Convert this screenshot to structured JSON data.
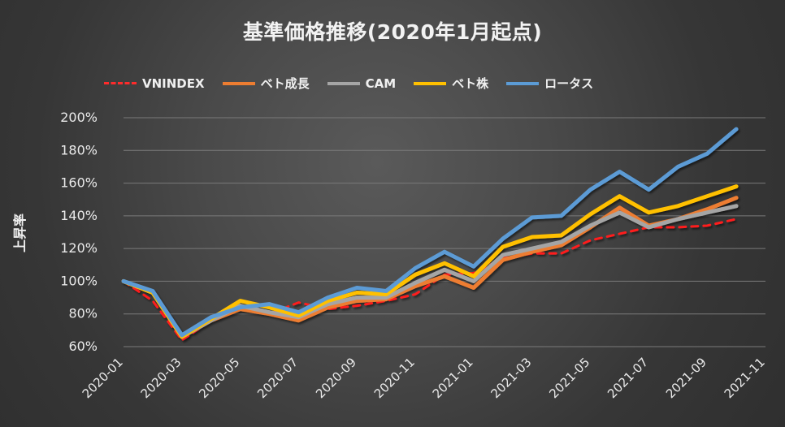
{
  "chart_data": {
    "type": "line",
    "title": "基準価格推移(2020年1月起点)",
    "xlabel": "",
    "ylabel": "上昇率",
    "ylim": [
      0.6,
      2.0
    ],
    "yticks": [
      "200%",
      "180%",
      "160%",
      "140%",
      "120%",
      "100%",
      "80%",
      "60%"
    ],
    "xticks": [
      "2020-01",
      "2020-03",
      "2020-05",
      "2020-07",
      "2020-09",
      "2020-11",
      "2021-01",
      "2021-03",
      "2021-05",
      "2021-07",
      "2021-09",
      "2021-11"
    ],
    "grid": true,
    "legend_position": "top",
    "x": [
      "2020-01",
      "2020-02",
      "2020-03",
      "2020-04",
      "2020-05",
      "2020-06",
      "2020-07",
      "2020-08",
      "2020-09",
      "2020-10",
      "2020-11",
      "2020-12",
      "2021-01",
      "2021-02",
      "2021-03",
      "2021-04",
      "2021-05",
      "2021-06",
      "2021-07",
      "2021-08",
      "2021-09",
      "2021-10"
    ],
    "series": [
      {
        "name": "VNINDEX",
        "color": "#ff1f1f",
        "style": "dashed",
        "values": [
          1.0,
          0.88,
          0.64,
          0.76,
          0.84,
          0.8,
          0.87,
          0.83,
          0.85,
          0.88,
          0.92,
          1.04,
          1.05,
          1.14,
          1.17,
          1.17,
          1.25,
          1.29,
          1.33,
          1.33,
          1.34,
          1.38
        ]
      },
      {
        "name": "ベト成長",
        "color": "#ed7d31",
        "style": "solid",
        "values": [
          1.0,
          0.93,
          0.66,
          0.76,
          0.83,
          0.8,
          0.76,
          0.84,
          0.88,
          0.89,
          0.97,
          1.03,
          0.96,
          1.13,
          1.18,
          1.22,
          1.33,
          1.45,
          1.34,
          1.38,
          1.44,
          1.51
        ]
      },
      {
        "name": "CAM",
        "color": "#a5a5a5",
        "style": "solid",
        "values": [
          1.0,
          0.93,
          0.66,
          0.76,
          0.85,
          0.81,
          0.78,
          0.86,
          0.9,
          0.9,
          0.99,
          1.07,
          1.0,
          1.16,
          1.2,
          1.24,
          1.34,
          1.42,
          1.33,
          1.38,
          1.42,
          1.46
        ]
      },
      {
        "name": "ベト株",
        "color": "#ffc000",
        "style": "solid",
        "values": [
          1.0,
          0.93,
          0.66,
          0.77,
          0.88,
          0.84,
          0.79,
          0.88,
          0.93,
          0.92,
          1.04,
          1.11,
          1.03,
          1.21,
          1.27,
          1.28,
          1.41,
          1.52,
          1.42,
          1.46,
          1.52,
          1.58
        ]
      },
      {
        "name": "ロータス",
        "color": "#5b9bd5",
        "style": "solid",
        "values": [
          1.0,
          0.94,
          0.67,
          0.78,
          0.84,
          0.86,
          0.81,
          0.9,
          0.96,
          0.94,
          1.08,
          1.18,
          1.09,
          1.26,
          1.39,
          1.4,
          1.56,
          1.67,
          1.56,
          1.7,
          1.78,
          1.93
        ]
      }
    ]
  }
}
